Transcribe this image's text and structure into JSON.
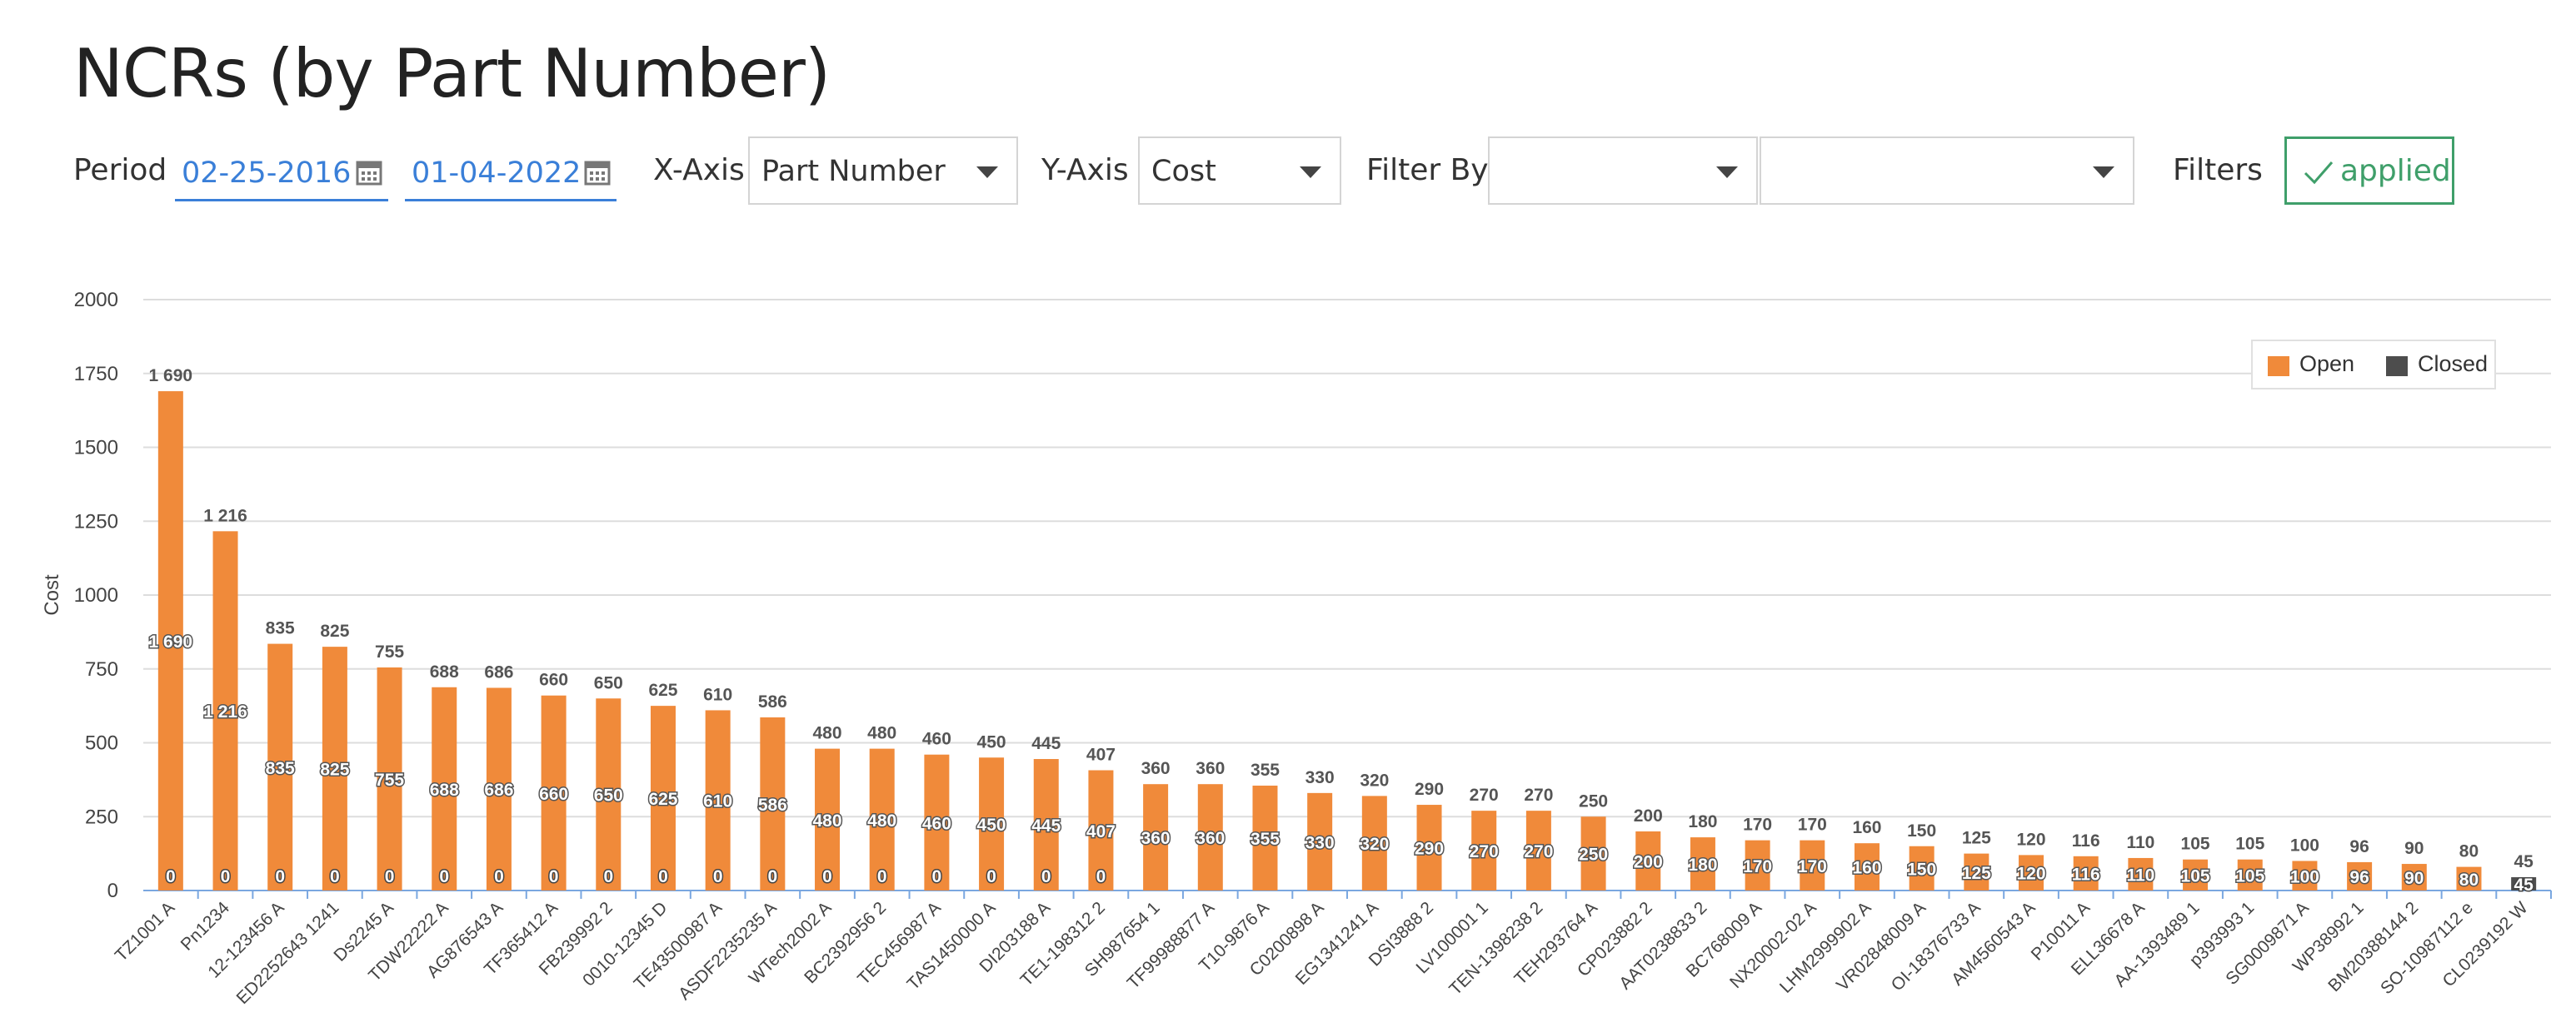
{
  "title": "NCRs (by Part Number)",
  "toolbar": {
    "period_label": "Period",
    "date_from": "02-25-2016",
    "date_to": "01-04-2022",
    "calendar_icon": "calendar-icon",
    "xaxis_label": "X-Axis",
    "xaxis_value": "Part Number",
    "yaxis_label": "Y-Axis",
    "yaxis_value": "Cost",
    "filterby_label": "Filter By",
    "filter1_value": "",
    "filter2_value": "",
    "filters_label": "Filters",
    "applied_label": "applied"
  },
  "colors": {
    "open": "#f08a3a",
    "closed": "#4d4d4d",
    "accent": "#3a7fd8",
    "applied": "#3f9f6a"
  },
  "chart_data": {
    "type": "bar",
    "stacked": true,
    "ylabel": "Cost",
    "xlabel": "",
    "ylim": [
      0,
      2000
    ],
    "yticks": [
      0,
      250,
      500,
      750,
      1000,
      1250,
      1500,
      1750,
      2000
    ],
    "grid": true,
    "legend_position": "top-right",
    "categories": [
      "TZ1001 A",
      "Pn1234",
      "12-123456 A",
      "ED2252643 1241",
      "Ds2245 A",
      "TDW22222 A",
      "AG876543 A",
      "TF365412 A",
      "FB239992 2",
      "0010-12345 D",
      "TE43500987 A",
      "ASDF2235235 A",
      "WTech2002 A",
      "BC2392956 2",
      "TEC456987 A",
      "TAS1450000 A",
      "DI203188 A",
      "TE1-198312 2",
      "SH987654 1",
      "TF99988877 A",
      "T10-9876 A",
      "C0200898 A",
      "EG1341241 A",
      "DSI3888 2",
      "LV100001 1",
      "TEN-1398238 2",
      "TEH293764 A",
      "CP023882 2",
      "AAT0238833 2",
      "BC768009 A",
      "NX20002-02 A",
      "LHM2999902 A",
      "VR02848009 A",
      "OI-18376733 A",
      "AM4560543 A",
      "P10011 A",
      "ELL36678 A",
      "AA-1393489 1",
      "p393993 1",
      "SG0009871 A",
      "WP38992 1",
      "BM20388144 2",
      "SO-10987112 e",
      "CL0239192 W"
    ],
    "series": [
      {
        "name": "Open",
        "values": [
          1690,
          1216,
          835,
          825,
          755,
          688,
          686,
          660,
          650,
          625,
          610,
          586,
          480,
          480,
          460,
          450,
          445,
          407,
          360,
          360,
          355,
          330,
          320,
          290,
          270,
          270,
          250,
          200,
          180,
          170,
          170,
          160,
          150,
          125,
          120,
          116,
          110,
          105,
          105,
          100,
          96,
          90,
          80,
          0
        ]
      },
      {
        "name": "Closed",
        "values": [
          0,
          0,
          0,
          0,
          0,
          0,
          0,
          0,
          0,
          0,
          0,
          0,
          0,
          0,
          0,
          0,
          0,
          0,
          0,
          0,
          0,
          0,
          0,
          0,
          0,
          0,
          0,
          0,
          0,
          0,
          0,
          0,
          0,
          0,
          0,
          0,
          0,
          0,
          0,
          0,
          0,
          0,
          0,
          45
        ]
      }
    ],
    "totals": [
      "1 690",
      "1 216",
      "835",
      "825",
      "755",
      "688",
      "686",
      "660",
      "650",
      "625",
      "610",
      "586",
      "480",
      "480",
      "460",
      "450",
      "445",
      "407",
      "360",
      "360",
      "355",
      "330",
      "320",
      "290",
      "270",
      "270",
      "250",
      "200",
      "180",
      "170",
      "170",
      "160",
      "150",
      "125",
      "120",
      "116",
      "110",
      "105",
      "105",
      "100",
      "96",
      "90",
      "80",
      "45"
    ],
    "open_labels": [
      "1 690",
      "1 216",
      "835",
      "825",
      "755",
      "688",
      "686",
      "660",
      "650",
      "625",
      "610",
      "586",
      "480",
      "480",
      "460",
      "450",
      "445",
      "407",
      "360",
      "360",
      "355",
      "330",
      "320",
      "290",
      "270",
      "270",
      "250",
      "200",
      "180",
      "170",
      "170",
      "160",
      "150",
      "125",
      "120",
      "116",
      "110",
      "105",
      "105",
      "100",
      "96",
      "90",
      "80",
      ""
    ],
    "closed_labels": [
      "0",
      "0",
      "0",
      "0",
      "0",
      "0",
      "0",
      "0",
      "0",
      "0",
      "0",
      "0",
      "0",
      "0",
      "0",
      "0",
      "0",
      "0",
      "",
      "",
      "",
      "",
      "",
      "",
      "",
      "",
      "",
      "",
      "",
      "",
      "",
      "",
      "",
      "",
      "",
      "",
      "",
      "",
      "",
      "",
      "",
      "",
      "",
      "45"
    ]
  }
}
